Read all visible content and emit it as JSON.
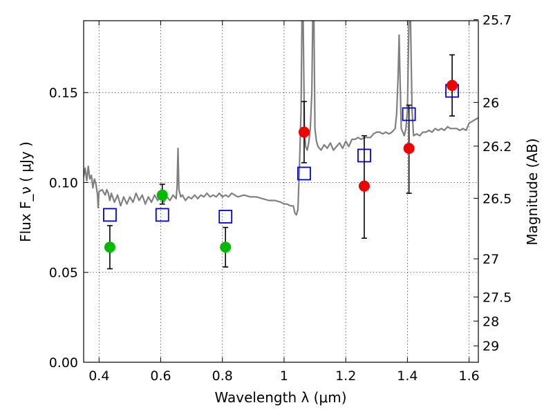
{
  "chart_data": {
    "type": "scatter",
    "title": "",
    "xlabel": "Wavelength  λ (μm)",
    "ylabel": "Flux  F_ν  ( μJy )",
    "y2label": "Magnitude (AB)",
    "xlim": [
      0.35,
      1.63
    ],
    "ylim": [
      0.0,
      0.19
    ],
    "grid": true,
    "x_ticks": [
      {
        "value": 0.4,
        "label": "0.4"
      },
      {
        "value": 0.6,
        "label": "0.6"
      },
      {
        "value": 0.8,
        "label": "0.8"
      },
      {
        "value": 1.0,
        "label": "1"
      },
      {
        "value": 1.2,
        "label": "1.2"
      },
      {
        "value": 1.4,
        "label": "1.4"
      },
      {
        "value": 1.6,
        "label": "1.6"
      }
    ],
    "y_ticks": [
      {
        "value": 0.0,
        "label": "0.00"
      },
      {
        "value": 0.05,
        "label": "0.05"
      },
      {
        "value": 0.1,
        "label": "0.10"
      },
      {
        "value": 0.15,
        "label": "0.15"
      }
    ],
    "y2_ticks": [
      {
        "value": 25.7,
        "label": "25.7"
      },
      {
        "value": 26.0,
        "label": "26"
      },
      {
        "value": 26.2,
        "label": "26.2"
      },
      {
        "value": 26.5,
        "label": "26.5"
      },
      {
        "value": 27.0,
        "label": "27"
      },
      {
        "value": 27.5,
        "label": "27.5"
      },
      {
        "value": 28.0,
        "label": "28"
      },
      {
        "value": 29.0,
        "label": "29"
      }
    ],
    "series": [
      {
        "kind": "line",
        "color": "#7f7f7f",
        "points": [
          [
            0.35,
            0.103
          ],
          [
            0.355,
            0.108
          ],
          [
            0.36,
            0.101
          ],
          [
            0.365,
            0.109
          ],
          [
            0.37,
            0.102
          ],
          [
            0.375,
            0.104
          ],
          [
            0.38,
            0.097
          ],
          [
            0.385,
            0.102
          ],
          [
            0.39,
            0.099
          ],
          [
            0.395,
            0.093
          ],
          [
            0.397,
            0.086
          ],
          [
            0.4,
            0.095
          ],
          [
            0.41,
            0.096
          ],
          [
            0.42,
            0.093
          ],
          [
            0.425,
            0.096
          ],
          [
            0.43,
            0.094
          ],
          [
            0.435,
            0.09
          ],
          [
            0.44,
            0.094
          ],
          [
            0.45,
            0.089
          ],
          [
            0.46,
            0.093
          ],
          [
            0.47,
            0.087
          ],
          [
            0.48,
            0.092
          ],
          [
            0.49,
            0.088
          ],
          [
            0.5,
            0.092
          ],
          [
            0.51,
            0.089
          ],
          [
            0.52,
            0.094
          ],
          [
            0.53,
            0.09
          ],
          [
            0.54,
            0.093
          ],
          [
            0.55,
            0.088
          ],
          [
            0.56,
            0.092
          ],
          [
            0.57,
            0.089
          ],
          [
            0.58,
            0.093
          ],
          [
            0.59,
            0.09
          ],
          [
            0.6,
            0.093
          ],
          [
            0.61,
            0.089
          ],
          [
            0.62,
            0.092
          ],
          [
            0.63,
            0.09
          ],
          [
            0.64,
            0.093
          ],
          [
            0.65,
            0.091
          ],
          [
            0.653,
            0.098
          ],
          [
            0.656,
            0.119
          ],
          [
            0.659,
            0.096
          ],
          [
            0.665,
            0.092
          ],
          [
            0.67,
            0.093
          ],
          [
            0.68,
            0.09
          ],
          [
            0.69,
            0.092
          ],
          [
            0.7,
            0.091
          ],
          [
            0.71,
            0.093
          ],
          [
            0.72,
            0.091
          ],
          [
            0.73,
            0.093
          ],
          [
            0.74,
            0.092
          ],
          [
            0.75,
            0.094
          ],
          [
            0.76,
            0.092
          ],
          [
            0.77,
            0.093
          ],
          [
            0.78,
            0.092
          ],
          [
            0.79,
            0.094
          ],
          [
            0.8,
            0.092
          ],
          [
            0.81,
            0.093
          ],
          [
            0.82,
            0.092
          ],
          [
            0.83,
            0.094
          ],
          [
            0.85,
            0.092
          ],
          [
            0.87,
            0.093
          ],
          [
            0.89,
            0.092
          ],
          [
            0.91,
            0.092
          ],
          [
            0.93,
            0.091
          ],
          [
            0.95,
            0.09
          ],
          [
            0.97,
            0.09
          ],
          [
            0.99,
            0.089
          ],
          [
            1.0,
            0.088
          ],
          [
            1.01,
            0.088
          ],
          [
            1.02,
            0.087
          ],
          [
            1.03,
            0.087
          ],
          [
            1.035,
            0.083
          ],
          [
            1.04,
            0.082
          ],
          [
            1.045,
            0.085
          ],
          [
            1.05,
            0.11
          ],
          [
            1.055,
            0.14
          ],
          [
            1.058,
            0.19
          ],
          [
            1.062,
            0.19
          ],
          [
            1.066,
            0.13
          ],
          [
            1.07,
            0.12
          ],
          [
            1.075,
            0.118
          ],
          [
            1.08,
            0.122
          ],
          [
            1.085,
            0.13
          ],
          [
            1.09,
            0.15
          ],
          [
            1.093,
            0.19
          ],
          [
            1.097,
            0.19
          ],
          [
            1.1,
            0.13
          ],
          [
            1.105,
            0.123
          ],
          [
            1.11,
            0.12
          ],
          [
            1.12,
            0.118
          ],
          [
            1.13,
            0.121
          ],
          [
            1.14,
            0.119
          ],
          [
            1.15,
            0.122
          ],
          [
            1.16,
            0.118
          ],
          [
            1.17,
            0.12
          ],
          [
            1.18,
            0.122
          ],
          [
            1.19,
            0.119
          ],
          [
            1.2,
            0.123
          ],
          [
            1.21,
            0.12
          ],
          [
            1.22,
            0.124
          ],
          [
            1.23,
            0.124
          ],
          [
            1.24,
            0.125
          ],
          [
            1.25,
            0.124
          ],
          [
            1.26,
            0.125
          ],
          [
            1.27,
            0.125
          ],
          [
            1.28,
            0.125
          ],
          [
            1.29,
            0.127
          ],
          [
            1.3,
            0.128
          ],
          [
            1.31,
            0.128
          ],
          [
            1.32,
            0.127
          ],
          [
            1.33,
            0.128
          ],
          [
            1.34,
            0.127
          ],
          [
            1.35,
            0.128
          ],
          [
            1.36,
            0.13
          ],
          [
            1.365,
            0.138
          ],
          [
            1.37,
            0.16
          ],
          [
            1.373,
            0.182
          ],
          [
            1.376,
            0.158
          ],
          [
            1.38,
            0.13
          ],
          [
            1.39,
            0.126
          ],
          [
            1.395,
            0.13
          ],
          [
            1.4,
            0.14
          ],
          [
            1.405,
            0.19
          ],
          [
            1.41,
            0.19
          ],
          [
            1.415,
            0.14
          ],
          [
            1.42,
            0.126
          ],
          [
            1.43,
            0.127
          ],
          [
            1.44,
            0.126
          ],
          [
            1.45,
            0.128
          ],
          [
            1.46,
            0.128
          ],
          [
            1.47,
            0.129
          ],
          [
            1.48,
            0.128
          ],
          [
            1.49,
            0.13
          ],
          [
            1.5,
            0.129
          ],
          [
            1.51,
            0.13
          ],
          [
            1.52,
            0.129
          ],
          [
            1.53,
            0.131
          ],
          [
            1.54,
            0.13
          ],
          [
            1.55,
            0.13
          ],
          [
            1.56,
            0.13
          ],
          [
            1.57,
            0.129
          ],
          [
            1.58,
            0.13
          ],
          [
            1.59,
            0.129
          ],
          [
            1.6,
            0.133
          ],
          [
            1.61,
            0.134
          ],
          [
            1.62,
            0.135
          ],
          [
            1.63,
            0.136
          ]
        ]
      },
      {
        "kind": "markers",
        "marker": "open-square",
        "color": "#0000dd",
        "points": [
          [
            0.435,
            0.082
          ],
          [
            0.605,
            0.082
          ],
          [
            0.81,
            0.081
          ],
          [
            1.065,
            0.105
          ],
          [
            1.26,
            0.115
          ],
          [
            1.405,
            0.138
          ],
          [
            1.545,
            0.151
          ]
        ]
      },
      {
        "kind": "markers",
        "marker": "circle-errorbar",
        "color": "#00bb00",
        "points": [
          {
            "x": 0.435,
            "y": 0.064,
            "ylo": 0.052,
            "yhi": 0.076
          },
          {
            "x": 0.605,
            "y": 0.093,
            "ylo": 0.088,
            "yhi": 0.099
          },
          {
            "x": 0.81,
            "y": 0.064,
            "ylo": 0.053,
            "yhi": 0.075
          }
        ]
      },
      {
        "kind": "markers",
        "marker": "circle-errorbar",
        "color": "#ee0000",
        "points": [
          {
            "x": 1.065,
            "y": 0.128,
            "ylo": 0.111,
            "yhi": 0.145
          },
          {
            "x": 1.26,
            "y": 0.098,
            "ylo": 0.069,
            "yhi": 0.126
          },
          {
            "x": 1.405,
            "y": 0.119,
            "ylo": 0.094,
            "yhi": 0.143
          },
          {
            "x": 1.545,
            "y": 0.154,
            "ylo": 0.137,
            "yhi": 0.171
          }
        ]
      }
    ]
  }
}
